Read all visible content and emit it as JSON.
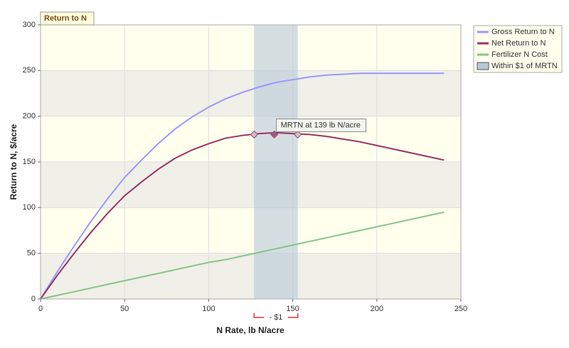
{
  "chart_data": {
    "type": "line",
    "title": "Return to N",
    "x_label": "N Rate, lb N/acre",
    "y_label": "Return to N, $/acre",
    "x": [
      0,
      10,
      20,
      30,
      40,
      50,
      60,
      70,
      80,
      90,
      100,
      110,
      120,
      130,
      140,
      150,
      160,
      170,
      180,
      190,
      200,
      210,
      220,
      230,
      240
    ],
    "series": [
      {
        "name": "Gross Return to N",
        "color": "#9999ff",
        "values": [
          0,
          30,
          58,
          85,
          110,
          133,
          152,
          170,
          186,
          199,
          210,
          219,
          226,
          232,
          237,
          240,
          243,
          245,
          246,
          247,
          247,
          247,
          247,
          247,
          247
        ]
      },
      {
        "name": "Net Return to N",
        "color": "#993366",
        "values": [
          0,
          26,
          50,
          73,
          94,
          113,
          128,
          142,
          154,
          163,
          170,
          176,
          179,
          181,
          182,
          181,
          180,
          178,
          175,
          172,
          168,
          164,
          160,
          156,
          152
        ]
      },
      {
        "name": "Fertilizer N Cost",
        "color": "#88c488",
        "values": [
          0,
          4,
          8,
          12,
          16,
          20,
          24,
          28,
          32,
          36,
          40,
          43,
          47,
          51,
          55,
          59,
          63,
          67,
          71,
          75,
          79,
          83,
          87,
          91,
          95
        ]
      }
    ],
    "band": {
      "name": "Within $1 of MRTN",
      "color": "#b8c8d8",
      "range": [
        127,
        153
      ]
    },
    "markers": {
      "x": [
        127,
        139,
        153
      ],
      "values": [
        180,
        180,
        180
      ]
    },
    "annotation": "MRTN at 139 lb N/acre",
    "range_label": "- $1",
    "xlim": [
      0,
      250
    ],
    "xticks": [
      0,
      50,
      100,
      150,
      200,
      250
    ],
    "ylim": [
      0,
      300
    ],
    "yticks": [
      0,
      50,
      100,
      150,
      200,
      250,
      300
    ],
    "grid": true
  }
}
